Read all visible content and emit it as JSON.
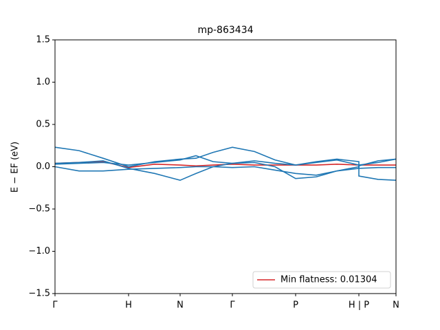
{
  "chart_data": {
    "type": "line",
    "title": "mp-863434",
    "ylabel": "E − EF (eV)",
    "x": [
      0,
      0.35,
      0.7,
      1.07,
      1.45,
      1.82,
      2.05,
      2.3,
      2.58,
      2.9,
      3.2,
      3.5,
      3.8,
      4.1,
      4.42,
      4.42,
      4.7,
      4.96
    ],
    "xlim": [
      0,
      4.96
    ],
    "xticks": [
      {
        "value": 0,
        "label": "Γ"
      },
      {
        "value": 1.07,
        "label": "H"
      },
      {
        "value": 1.82,
        "label": "N"
      },
      {
        "value": 2.58,
        "label": "Γ"
      },
      {
        "value": 3.5,
        "label": "P"
      },
      {
        "value": 4.42,
        "label": "H | P"
      },
      {
        "value": 4.96,
        "label": "N"
      }
    ],
    "ylim": [
      -1.5,
      1.5
    ],
    "yticks": [
      {
        "value": -1.5,
        "label": "−1.5"
      },
      {
        "value": -1.0,
        "label": "−1.0"
      },
      {
        "value": -0.5,
        "label": "−0.5"
      },
      {
        "value": 0,
        "label": "0.0"
      },
      {
        "value": 0.5,
        "label": "0.5"
      },
      {
        "value": 1.0,
        "label": "1.0"
      },
      {
        "value": 1.5,
        "label": "1.5"
      }
    ],
    "legend": "lower right",
    "series": [
      {
        "name": "Min flatness: 0.01304",
        "color": "#d62728",
        "values": [
          0.04,
          0.05,
          0.06,
          -0.01,
          0.03,
          0.02,
          0.01,
          0.02,
          0.03,
          0.02,
          0.02,
          0.02,
          0.02,
          0.03,
          0.02,
          0.02,
          0.02,
          0.02
        ]
      },
      {
        "color": "#1f77b4",
        "values": [
          0.23,
          0.19,
          0.1,
          0.0,
          0.06,
          0.09,
          0.1,
          0.17,
          0.23,
          0.18,
          0.08,
          0.02,
          0.05,
          0.08,
          0.02,
          -0.11,
          -0.15,
          -0.16
        ]
      },
      {
        "color": "#1f77b4",
        "values": [
          0.04,
          0.05,
          0.07,
          -0.02,
          -0.08,
          -0.16,
          -0.08,
          0.0,
          0.04,
          0.05,
          0.0,
          -0.14,
          -0.12,
          -0.05,
          0.0,
          0.01,
          0.07,
          0.09
        ]
      },
      {
        "color": "#1f77b4",
        "values": [
          0.0,
          -0.05,
          -0.05,
          -0.03,
          -0.02,
          -0.01,
          0.0,
          0.0,
          -0.01,
          0.0,
          -0.04,
          -0.08,
          -0.1,
          -0.05,
          -0.02,
          0.02,
          0.05,
          0.09
        ]
      },
      {
        "color": "#1f77b4",
        "values": [
          0.03,
          0.04,
          0.05,
          0.02,
          0.05,
          0.08,
          0.13,
          0.06,
          0.04,
          0.07,
          0.04,
          0.02,
          0.06,
          0.09,
          0.06,
          -0.02,
          -0.01,
          -0.01
        ]
      }
    ]
  }
}
